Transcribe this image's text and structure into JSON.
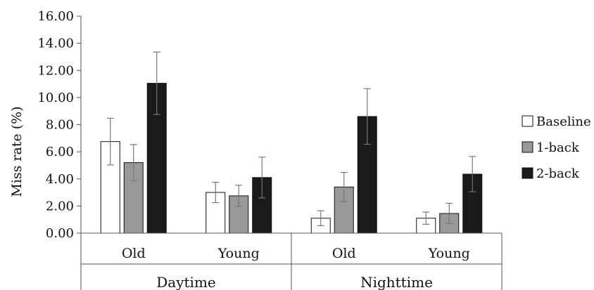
{
  "chart_data": {
    "type": "bar",
    "title": "",
    "xlabel": "",
    "ylabel": "Miss rate (%)",
    "ylim": [
      0,
      16
    ],
    "yticks": [
      "0.00",
      "2.00",
      "4.00",
      "6.00",
      "8.00",
      "10.00",
      "12.00",
      "14.00",
      "16.00"
    ],
    "grid": false,
    "legend_position": "right",
    "groups": [
      {
        "label": "Daytime",
        "categories": [
          "Old",
          "Young"
        ]
      },
      {
        "label": "Nighttime",
        "categories": [
          "Old",
          "Young"
        ]
      }
    ],
    "categories": [
      "Old",
      "Young",
      "Old",
      "Young"
    ],
    "series": [
      {
        "name": "Baseline",
        "color": "#ffffff",
        "values": [
          6.75,
          3.0,
          1.1,
          1.1
        ],
        "errors": [
          1.72,
          0.75,
          0.55,
          0.45
        ]
      },
      {
        "name": "1-back",
        "color": "#999999",
        "values": [
          5.2,
          2.75,
          3.4,
          1.45
        ],
        "errors": [
          1.33,
          0.78,
          1.08,
          0.75
        ]
      },
      {
        "name": "2-back",
        "color": "#1a1a1a",
        "values": [
          11.05,
          4.1,
          8.6,
          4.35
        ],
        "errors": [
          2.3,
          1.5,
          2.05,
          1.3
        ]
      }
    ]
  }
}
